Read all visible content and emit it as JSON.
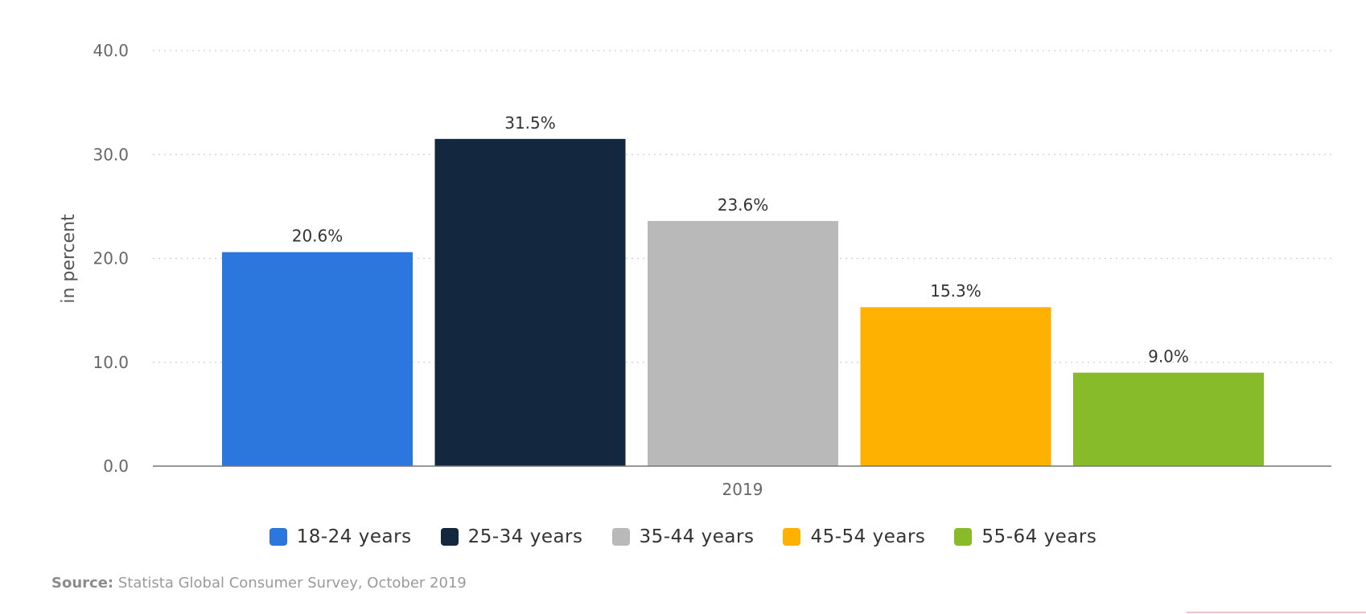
{
  "chart_data": {
    "type": "bar",
    "categories": [
      "2019"
    ],
    "series": [
      {
        "name": "18-24 years",
        "values": [
          20.6
        ],
        "color": "#2b77dd"
      },
      {
        "name": "25-34 years",
        "values": [
          31.5
        ],
        "color": "#13273f"
      },
      {
        "name": "35-44 years",
        "values": [
          23.6
        ],
        "color": "#b9b9b9"
      },
      {
        "name": "45-54 years",
        "values": [
          15.3
        ],
        "color": "#ffb100"
      },
      {
        "name": "55-64 years",
        "values": [
          9.0
        ],
        "color": "#87bb2a"
      }
    ],
    "data_labels": [
      "20.6%",
      "31.5%",
      "23.6%",
      "15.3%",
      "9.0%"
    ],
    "y_ticks": [
      "0.0",
      "10.0",
      "20.0",
      "30.0",
      "40.0"
    ],
    "ylim": [
      0,
      40
    ],
    "xlabel": "2019",
    "ylabel": "in percent",
    "grid": true,
    "legend_position": "bottom"
  },
  "source": {
    "label": "Source:",
    "text": " Statista Global Consumer Survey, October 2019"
  }
}
